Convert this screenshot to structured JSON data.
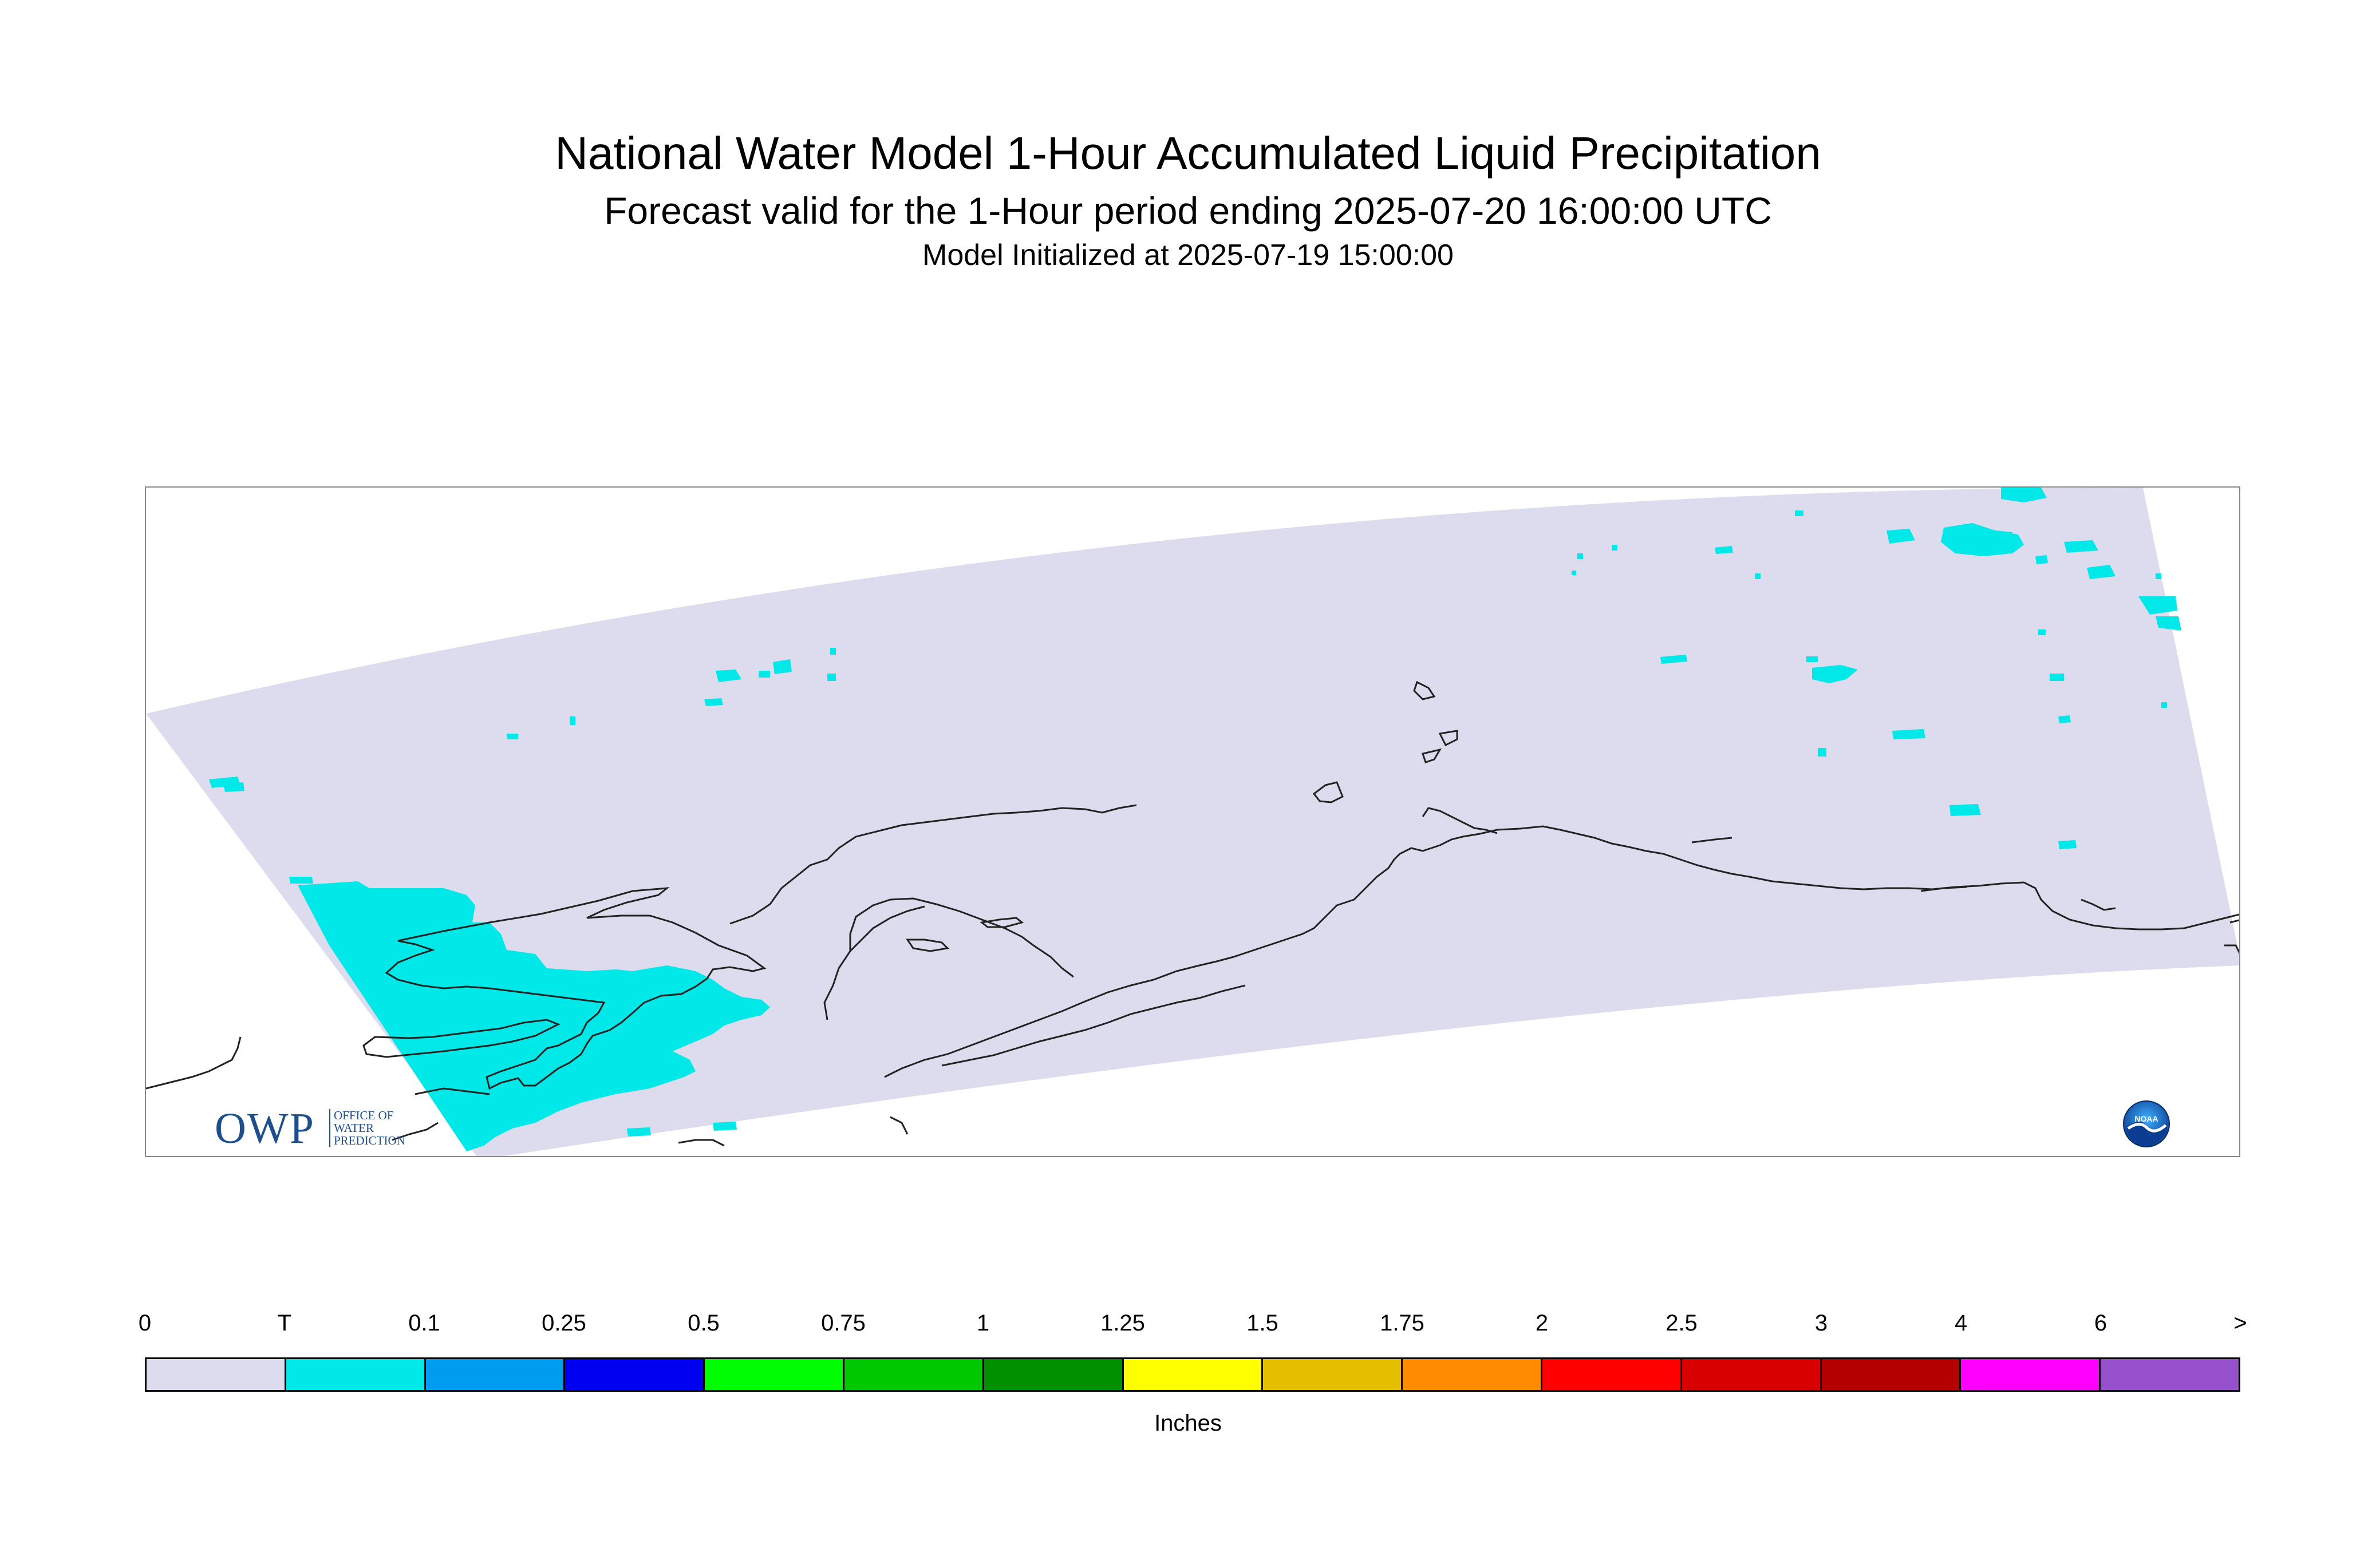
{
  "header": {
    "title": "National Water Model 1-Hour Accumulated Liquid Precipitation",
    "subtitle": "Forecast valid for the 1-Hour period ending 2025-07-20 16:00:00 UTC",
    "init": "Model Initialized at 2025-07-19 15:00:00"
  },
  "colors": {
    "domain_fill": "#dcdcee",
    "trace_fill": "#00e8e8",
    "coast": "#222222",
    "frame": "#888888"
  },
  "logos": {
    "owp_letters": "OWP",
    "owp_line1": "OFFICE OF",
    "owp_line2": "WATER",
    "owp_line3": "PREDICTION",
    "noaa": "NOAA"
  },
  "legend": {
    "labels": [
      "0",
      "T",
      "0.1",
      "0.25",
      "0.5",
      "0.75",
      "1",
      "1.25",
      "1.5",
      "1.75",
      "2",
      "2.5",
      "3",
      "4",
      "6",
      ">"
    ],
    "colors": [
      "#dcdcee",
      "#00e8e8",
      "#009cf0",
      "#0000f0",
      "#00fc00",
      "#00c800",
      "#009000",
      "#ffff00",
      "#e6be00",
      "#ff8c00",
      "#ff0000",
      "#d80000",
      "#b40000",
      "#ff00ff",
      "#9650cc"
    ],
    "units": "Inches"
  }
}
